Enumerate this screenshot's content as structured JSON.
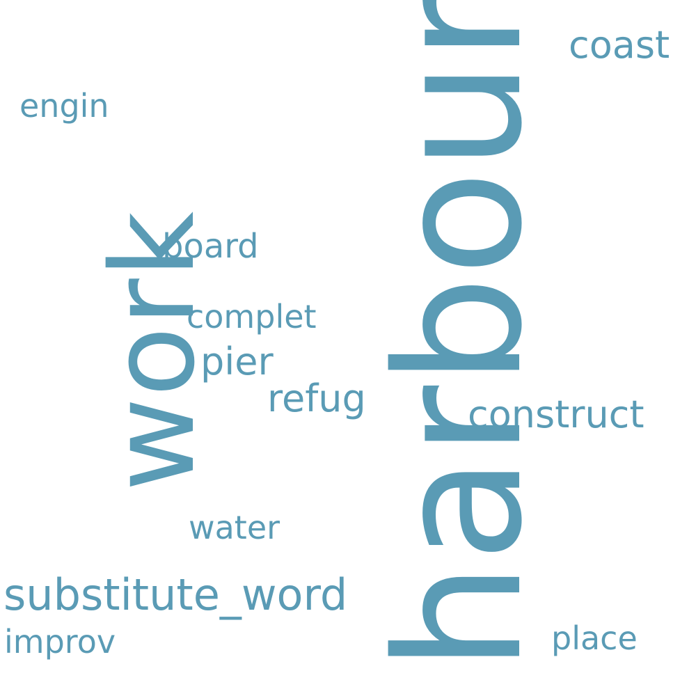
{
  "words": {
    "harbour": "harbour",
    "work": "work",
    "substitute_word": "substitute_word",
    "construct": "construct",
    "coast": "coast",
    "engin": "engin",
    "board": "board",
    "complet": "complet",
    "pier": "pier",
    "refug": "refug",
    "water": "water",
    "improv": "improv",
    "place": "place"
  },
  "colors": {
    "word": "#5a9bb5",
    "background": "#ffffff"
  }
}
